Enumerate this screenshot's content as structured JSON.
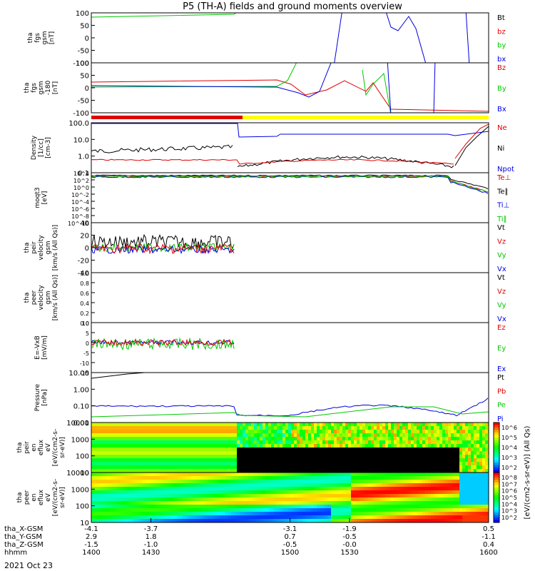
{
  "title": "P5 (TH-A) fields and ground moments overview",
  "date_label": "2021 Oct 23",
  "colors": {
    "black": "#000000",
    "red": "#e00000",
    "green": "#00c800",
    "blue": "#0000e0",
    "yellow": "#ffff00"
  },
  "chart_data": [
    {
      "type": "line",
      "ylabel": [
        "tha",
        "fgs",
        "gsm",
        "[nT]"
      ],
      "ylim": [
        -100,
        100
      ],
      "yticks": [
        "100",
        "50",
        "0",
        "-50",
        "-100"
      ],
      "legend": [
        {
          "name": "Bt",
          "color": "black"
        },
        {
          "name": "bz",
          "color": "red"
        },
        {
          "name": "by",
          "color": "green"
        },
        {
          "name": "bx",
          "color": "blue"
        }
      ]
    },
    {
      "type": "line",
      "ylabel": [
        "tha",
        "fgs",
        "gsm",
        "-180",
        "[nT]"
      ],
      "ylim": [
        -125,
        125
      ],
      "yticks": [
        "100",
        "50",
        "0",
        "-50",
        "-100"
      ],
      "legend": [
        {
          "name": "Bz",
          "color": "red"
        },
        {
          "name": "By",
          "color": "green"
        },
        {
          "name": "Bx",
          "color": "blue"
        }
      ]
    },
    {
      "type": "line",
      "ylabel": [
        "Density",
        "[1/cc]",
        "[cm-3]"
      ],
      "scale": "log",
      "ylim": [
        0.05,
        200
      ],
      "yticks": [
        "100.0",
        "10.0",
        "1.0",
        "0.1"
      ],
      "legend": [
        {
          "name": "Ne",
          "color": "red"
        },
        {
          "name": "Ni",
          "color": "black"
        },
        {
          "name": "Npot",
          "color": "blue"
        }
      ]
    },
    {
      "type": "line",
      "ylabel": [
        "moqt3",
        "[eV]"
      ],
      "scale": "log",
      "yticks": [
        "10^4",
        "10^2",
        "10^0",
        "10^-2",
        "10^-4",
        "10^-6",
        "10^-8",
        "10^-10"
      ],
      "legend": [
        {
          "name": "Te⊥",
          "color": "red"
        },
        {
          "name": "Te∥",
          "color": "black"
        },
        {
          "name": "Ti⊥",
          "color": "blue"
        },
        {
          "name": "Ti∥",
          "color": "green"
        }
      ]
    },
    {
      "type": "line",
      "ylabel": [
        "tha",
        "peir",
        "velocity",
        "gsm",
        "[km/s (All Qs)]"
      ],
      "ylim": [
        -40,
        40
      ],
      "yticks": [
        "40",
        "20",
        "0",
        "-20",
        "-40"
      ],
      "legend": [
        {
          "name": "Vt",
          "color": "black"
        },
        {
          "name": "Vz",
          "color": "red"
        },
        {
          "name": "Vy",
          "color": "green"
        },
        {
          "name": "Vx",
          "color": "blue"
        }
      ]
    },
    {
      "type": "line",
      "ylabel": [
        "tha",
        "peer",
        "velocity",
        "gsm",
        "[km/s (All Qs)]"
      ],
      "ylim": [
        0,
        1
      ],
      "yticks": [
        "1.0",
        "0.8",
        "0.6",
        "0.4",
        "0.2",
        "0.0"
      ],
      "legend": [
        {
          "name": "Vt",
          "color": "black"
        },
        {
          "name": "Vz",
          "color": "red"
        },
        {
          "name": "Vy",
          "color": "green"
        },
        {
          "name": "Vx",
          "color": "blue"
        }
      ]
    },
    {
      "type": "line",
      "ylabel": [
        "E=-VxB",
        "[mV/m]"
      ],
      "ylim": [
        -15,
        10
      ],
      "yticks": [
        "10",
        "5",
        "0",
        "-5",
        "-10",
        "-15"
      ],
      "legend": [
        {
          "name": "Ez",
          "color": "red"
        },
        {
          "name": "Ey",
          "color": "green"
        },
        {
          "name": "Ex",
          "color": "blue"
        }
      ]
    },
    {
      "type": "line",
      "ylabel": [
        "Pressure",
        "[nPa]"
      ],
      "scale": "log",
      "yticks": [
        "10.00",
        "1.00",
        "0.10",
        "0.01"
      ],
      "legend": [
        {
          "name": "Pt",
          "color": "black"
        },
        {
          "name": "Pb",
          "color": "red"
        },
        {
          "name": "Pe",
          "color": "green"
        },
        {
          "name": "Pi",
          "color": "blue"
        }
      ]
    },
    {
      "type": "heatmap",
      "ylabel": [
        "tha",
        "peir",
        "en",
        "eflux",
        "eV",
        "[eV/(cm2-s-",
        "sr-eV)]"
      ],
      "scale": "log",
      "yticks": [
        "10000",
        "1000",
        "100",
        "10"
      ],
      "colorbar": {
        "ticks": [
          "10^6",
          "10^5",
          "10^4",
          "10^3",
          "10^2"
        ]
      }
    },
    {
      "type": "heatmap",
      "ylabel": [
        "tha",
        "peer",
        "en",
        "eflux",
        "eV",
        "[eV/(cm2-s-",
        "sr-eV)]"
      ],
      "scale": "log",
      "yticks": [
        "10000",
        "1000",
        "100",
        "10"
      ],
      "colorbar": {
        "ticks": [
          "10^8",
          "10^7",
          "10^6",
          "10^5",
          "10^4",
          "10^3",
          "10^2"
        ]
      }
    }
  ],
  "colorbar_label": "[eV/(cm2-s-sr-eV)] (All Qs)",
  "x_axis": {
    "row_labels": [
      "tha_X-GSM",
      "tha_Y-GSM",
      "tha_Z-GSM",
      "hhmm"
    ],
    "ticks": [
      {
        "t": 1400,
        "x_gsm": "-4.1",
        "y_gsm": "2.9",
        "z_gsm": "-1.5",
        "hhmm": "1400"
      },
      {
        "t": 1430,
        "x_gsm": "-3.7",
        "y_gsm": "1.8",
        "z_gsm": "-1.0",
        "hhmm": "1430"
      },
      {
        "t": 1500,
        "x_gsm": "-3.1",
        "y_gsm": "0.7",
        "z_gsm": "-0.5",
        "hhmm": "1500"
      },
      {
        "t": 1530,
        "x_gsm": "-1.9",
        "y_gsm": "-0.5",
        "z_gsm": "-0.0",
        "hhmm": "1530"
      },
      {
        "t": 1600,
        "x_gsm": "0.5",
        "y_gsm": "-1.1",
        "z_gsm": "0.4",
        "hhmm": "1600"
      }
    ]
  }
}
